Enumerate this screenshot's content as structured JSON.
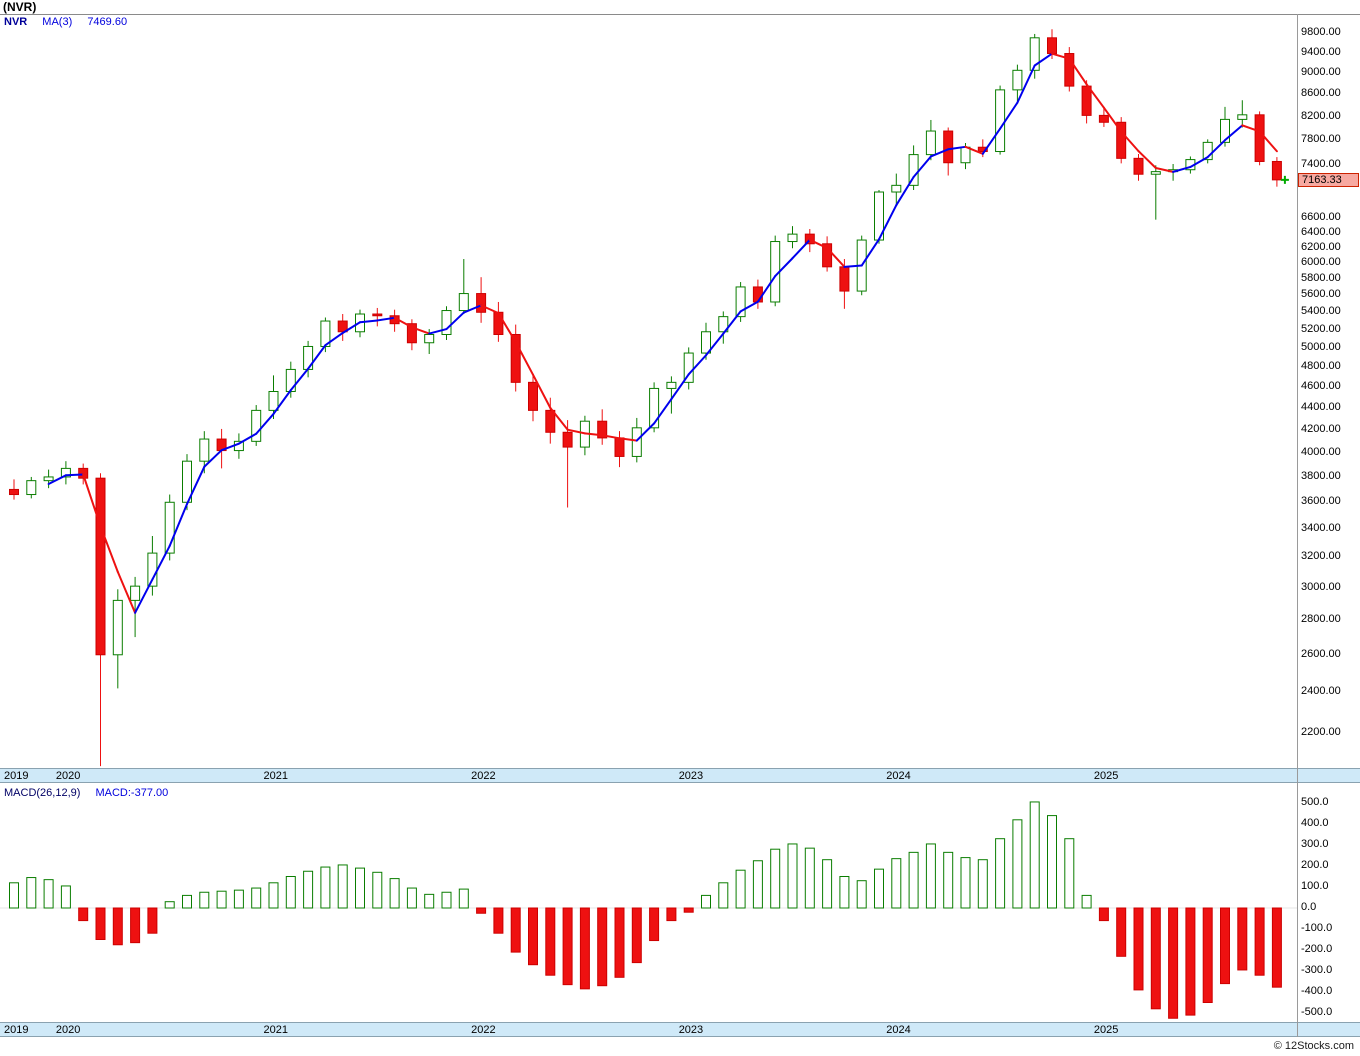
{
  "header": {
    "title": "(NVR)"
  },
  "price_chart": {
    "legend": {
      "symbol": "NVR",
      "ma_label": "MA(3)",
      "ma_value": "7469.60"
    },
    "last_price_label": "7163.33",
    "y_axis_labels": [
      "9800.00",
      "9400.00",
      "9000.00",
      "8600.00",
      "8200.00",
      "7800.00",
      "7400.00",
      "6600.00",
      "6400.00",
      "6200.00",
      "6000.00",
      "5800.00",
      "5600.00",
      "5400.00",
      "5200.00",
      "5000.00",
      "4800.00",
      "4600.00",
      "4400.00",
      "4200.00",
      "4000.00",
      "3800.00",
      "3600.00",
      "3400.00",
      "3200.00",
      "3000.00",
      "2800.00",
      "2600.00",
      "2400.00",
      "2200.00"
    ]
  },
  "macd_chart": {
    "legend": {
      "label": "MACD(26,12,9)",
      "value_label": "MACD:-377.00"
    },
    "y_axis_labels": [
      "500.0",
      "400.0",
      "300.0",
      "200.0",
      "100.0",
      "0.0",
      "-100.0",
      "-200.0",
      "-300.0",
      "-400.0",
      "-500.0"
    ]
  },
  "date_axis": {
    "years": [
      {
        "label": "2019",
        "candle_index": 0
      },
      {
        "label": "2020",
        "candle_index": 3
      },
      {
        "label": "2021",
        "candle_index": 15
      },
      {
        "label": "2022",
        "candle_index": 27
      },
      {
        "label": "2023",
        "candle_index": 39
      },
      {
        "label": "2024",
        "candle_index": 51
      },
      {
        "label": "2025",
        "candle_index": 63
      }
    ]
  },
  "footer": {
    "credit": "© 12Stocks.com"
  },
  "colors": {
    "up": "#0a7d00",
    "up_fill": "#ffffff",
    "down": "#ee1111",
    "down_stroke": "#cc0000",
    "ma_up": "#0000ee",
    "ma_down": "#ee1111",
    "marker": "#00aa00",
    "band_bg": "#cfe9f8",
    "tag_bg": "#f7a9a1"
  },
  "chart_data": [
    {
      "type": "candlestick",
      "symbol": "NVR",
      "interval": "monthly",
      "yscale": "log",
      "ylim": [
        2040,
        10200
      ],
      "x_years": [
        "2019",
        "2020",
        "2021",
        "2022",
        "2023",
        "2024",
        "2025"
      ],
      "ma_period": 3,
      "ma_last_value": 7469.6,
      "last_close": 7163.33,
      "open": [
        3700,
        3660,
        3770,
        3800,
        3870,
        3790,
        2600,
        2920,
        3010,
        3230,
        3600,
        3930,
        4120,
        4020,
        4100,
        4380,
        4560,
        4780,
        5020,
        5300,
        5180,
        5380,
        5360,
        5270,
        5060,
        5150,
        5420,
        5620,
        5400,
        5150,
        4650,
        4380,
        4180,
        4050,
        4280,
        4130,
        3970,
        4220,
        4590,
        4650,
        4950,
        5180,
        5350,
        5700,
        5520,
        6280,
        6380,
        6250,
        5950,
        5650,
        6300,
        6980,
        7080,
        7560,
        7950,
        7430,
        7680,
        7610,
        8680,
        9050,
        9700,
        9380,
        8750,
        8220,
        8100,
        7500,
        7250,
        7290,
        7320,
        7480,
        7760,
        8150,
        8230,
        7450
      ],
      "high": [
        3780,
        3800,
        3860,
        3930,
        3910,
        3830,
        2990,
        3070,
        3350,
        3660,
        3990,
        4190,
        4210,
        4170,
        4430,
        4720,
        4860,
        5080,
        5340,
        5380,
        5430,
        5450,
        5430,
        5320,
        5210,
        5470,
        6050,
        5820,
        5520,
        5260,
        4720,
        4500,
        4290,
        4330,
        4390,
        4190,
        4310,
        4650,
        4710,
        5010,
        5280,
        5410,
        5760,
        5790,
        6360,
        6490,
        6450,
        6350,
        6050,
        6360,
        7010,
        7260,
        7710,
        8140,
        8010,
        7750,
        7810,
        8760,
        9160,
        9780,
        9880,
        9510,
        8860,
        8360,
        8190,
        7570,
        7390,
        7410,
        7530,
        7810,
        8370,
        8490,
        8290,
        7520
      ],
      "low": [
        3620,
        3630,
        3710,
        3740,
        3740,
        2050,
        2420,
        2700,
        2950,
        3180,
        3540,
        3830,
        3870,
        3950,
        4060,
        4300,
        4500,
        4700,
        4960,
        5080,
        5120,
        5240,
        5180,
        4980,
        4940,
        5090,
        5380,
        5280,
        5070,
        4560,
        4280,
        4080,
        3560,
        3980,
        4070,
        3880,
        3920,
        4180,
        4350,
        4580,
        4880,
        5050,
        5290,
        5440,
        5470,
        6190,
        6140,
        5890,
        5440,
        5600,
        6250,
        6780,
        7010,
        7470,
        7230,
        7330,
        7520,
        7560,
        8470,
        8890,
        9270,
        8650,
        8080,
        8020,
        7420,
        7150,
        6580,
        7150,
        7260,
        7420,
        7690,
        8010,
        7390,
        7060
      ],
      "close": [
        3660,
        3770,
        3800,
        3870,
        3790,
        2600,
        2920,
        3010,
        3230,
        3600,
        3930,
        4120,
        4020,
        4100,
        4380,
        4560,
        4780,
        5020,
        5300,
        5180,
        5380,
        5360,
        5270,
        5060,
        5150,
        5420,
        5620,
        5400,
        5150,
        4650,
        4380,
        4180,
        4050,
        4280,
        4130,
        3970,
        4220,
        4590,
        4650,
        4950,
        5180,
        5350,
        5700,
        5520,
        6280,
        6380,
        6250,
        5950,
        5650,
        6300,
        6980,
        7080,
        7560,
        7950,
        7430,
        7680,
        7610,
        8680,
        9050,
        9700,
        9380,
        8750,
        8220,
        8100,
        7500,
        7250,
        7290,
        7320,
        7480,
        7760,
        8150,
        8230,
        7450,
        7163.33
      ]
    },
    {
      "type": "bar",
      "name": "MACD(26,12,9)",
      "last_value": -377.0,
      "ylim": [
        -545,
        590
      ],
      "positive_style": "white-green-outline",
      "negative_style": "solid-red",
      "values": [
        120,
        145,
        135,
        105,
        -60,
        -150,
        -175,
        -165,
        -120,
        30,
        60,
        75,
        80,
        85,
        95,
        120,
        150,
        175,
        195,
        205,
        190,
        170,
        140,
        95,
        65,
        75,
        90,
        -25,
        -120,
        -210,
        -270,
        -320,
        -365,
        -385,
        -370,
        -330,
        -260,
        -155,
        -60,
        -20,
        60,
        120,
        180,
        225,
        280,
        305,
        285,
        230,
        150,
        130,
        185,
        235,
        265,
        305,
        265,
        240,
        230,
        330,
        420,
        505,
        440,
        330,
        60,
        -60,
        -230,
        -390,
        -480,
        -525,
        -510,
        -450,
        -360,
        -295,
        -320,
        -377
      ]
    }
  ]
}
